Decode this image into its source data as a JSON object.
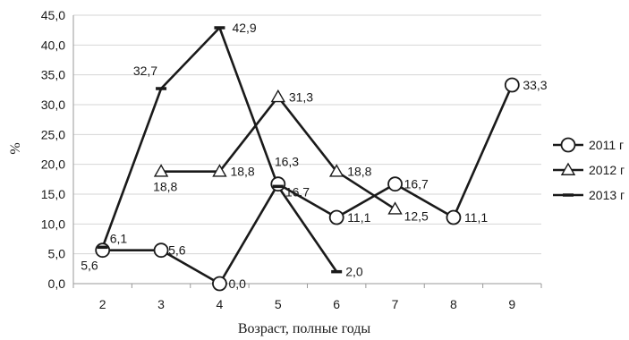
{
  "chart_data": {
    "type": "line",
    "title": "",
    "xlabel": "Возраст, полные годы",
    "ylabel": "%",
    "x_categories": [
      "2",
      "3",
      "4",
      "5",
      "6",
      "7",
      "8",
      "9"
    ],
    "ylim": [
      0,
      45
    ],
    "y_ticks": [
      "0,0",
      "5,0",
      "10,0",
      "15,0",
      "20,0",
      "25,0",
      "30,0",
      "35,0",
      "40,0",
      "45,0"
    ],
    "grid": "horizontal",
    "legend_position": "right",
    "series": [
      {
        "name": "2011 г",
        "marker": "circle",
        "points": [
          {
            "x": "2",
            "y": 5.6,
            "label": "5,6"
          },
          {
            "x": "3",
            "y": 5.6,
            "label": "5,6"
          },
          {
            "x": "4",
            "y": 0.0,
            "label": "0,0"
          },
          {
            "x": "5",
            "y": 16.7,
            "label": "16,7"
          },
          {
            "x": "6",
            "y": 11.1,
            "label": "11,1"
          },
          {
            "x": "7",
            "y": 16.7,
            "label": "16,7"
          },
          {
            "x": "8",
            "y": 11.1,
            "label": "11,1"
          },
          {
            "x": "9",
            "y": 33.3,
            "label": "33,3"
          }
        ]
      },
      {
        "name": "2012 г",
        "marker": "triangle",
        "points": [
          {
            "x": "3",
            "y": 18.8,
            "label": "18,8"
          },
          {
            "x": "4",
            "y": 18.8,
            "label": "18,8"
          },
          {
            "x": "5",
            "y": 31.3,
            "label": "31,3"
          },
          {
            "x": "6",
            "y": 18.8,
            "label": "18,8"
          },
          {
            "x": "7",
            "y": 12.5,
            "label": "12,5"
          }
        ]
      },
      {
        "name": "2013 г",
        "marker": "dash",
        "points": [
          {
            "x": "2",
            "y": 6.1,
            "label": "6,1"
          },
          {
            "x": "3",
            "y": 32.7,
            "label": "32,7"
          },
          {
            "x": "4",
            "y": 42.9,
            "label": "42,9"
          },
          {
            "x": "5",
            "y": 16.3,
            "label": "16,3"
          },
          {
            "x": "6",
            "y": 2.0,
            "label": "2,0"
          }
        ]
      }
    ]
  }
}
